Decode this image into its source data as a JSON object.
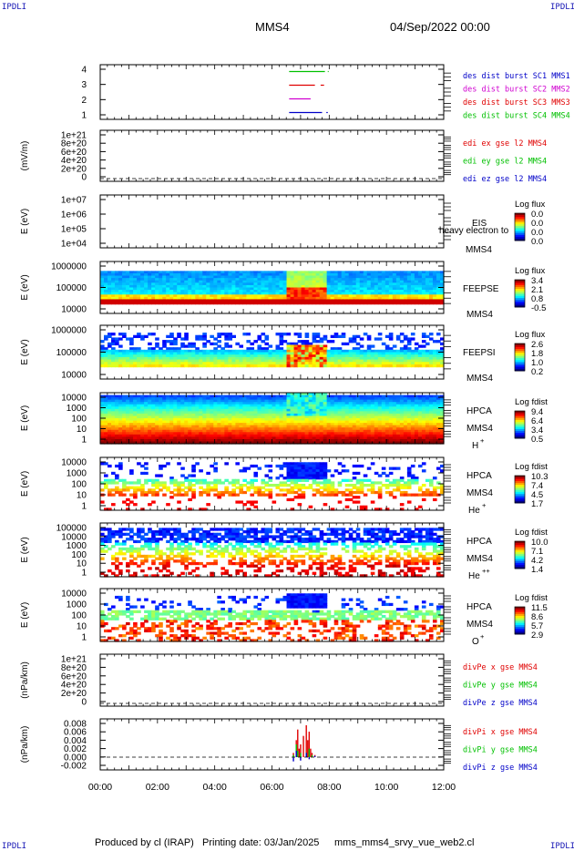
{
  "header": {
    "corner_left": "IPDLI",
    "corner_right": "IPDLI",
    "spacecraft": "MMS4",
    "date": "04/Sep/2022 00:00"
  },
  "footer": {
    "produced": "Produced by cl (IRAP)",
    "printing": "Printing date: 03/Jan/2025",
    "file": "mms_mms4_srvy_vue_web2.cl",
    "corner_left": "IPDLI",
    "corner_right": "IPDLI"
  },
  "time_axis": {
    "ticks": [
      "00:00",
      "02:00",
      "04:00",
      "06:00",
      "08:00",
      "10:00",
      "12:00"
    ],
    "range_hours": [
      0,
      12
    ]
  },
  "colors": {
    "red": "#e00000",
    "green": "#00c000",
    "blue": "#0000c8",
    "magenta": "#d000d0"
  },
  "chart_data": [
    {
      "type": "line",
      "panel": "burst-availability",
      "ylabel": "",
      "yticks": [
        "4",
        "3",
        "2",
        "1"
      ],
      "ylim": [
        0.5,
        4.5
      ],
      "legend": [
        {
          "label": "des dist burst SC1 MMS1",
          "color": "#0000c8"
        },
        {
          "label": "des dist burst SC2 MMS2",
          "color": "#d000d0"
        },
        {
          "label": "des dist burst SC3 MMS3",
          "color": "#e00000"
        },
        {
          "label": "des dist burst SC4 MMS4",
          "color": "#00c000"
        }
      ],
      "series": [
        {
          "level": 4,
          "color": "#00c000",
          "intervals": [
            [
              6.6,
              7.85
            ],
            [
              7.95,
              7.98
            ]
          ]
        },
        {
          "level": 3,
          "color": "#e00000",
          "intervals": [
            [
              6.6,
              7.5
            ],
            [
              7.7,
              7.82
            ]
          ]
        },
        {
          "level": 2,
          "color": "#d000d0",
          "intervals": [
            [
              6.6,
              7.35
            ]
          ]
        },
        {
          "level": 1,
          "color": "#0000c8",
          "intervals": [
            [
              6.6,
              7.75
            ],
            [
              7.9,
              7.95
            ]
          ]
        }
      ]
    },
    {
      "type": "line",
      "panel": "edi-e-field",
      "ylabel": "(mV/m)",
      "yticks": [
        "1e+21",
        "8e+20",
        "6e+20",
        "4e+20",
        "2e+20",
        "0"
      ],
      "ylim": [
        0,
        1e+21
      ],
      "legend": [
        {
          "label": "edi ex gse l2 MMS4",
          "color": "#e00000"
        },
        {
          "label": "edi ey gse l2 MMS4",
          "color": "#00c000"
        },
        {
          "label": "edi ez gse l2 MMS4",
          "color": "#0000c8"
        }
      ],
      "zero_line": true
    },
    {
      "type": "heatmap",
      "panel": "eis",
      "ylabel": "E (eV)",
      "yticks": [
        "1e+07",
        "1e+06",
        "1e+05",
        "1e+04"
      ],
      "labels": [
        "EIS",
        "MMS4"
      ],
      "overlay_text": "heavy electron to",
      "colorbar": {
        "title": "Log flux",
        "ticks": [
          "0.0",
          "0.0",
          "0.0",
          "0.0"
        ]
      }
    },
    {
      "type": "heatmap",
      "panel": "feeps-electrons",
      "ylabel": "E (eV)",
      "yticks": [
        "1000000",
        "100000",
        "10000"
      ],
      "labels": [
        "FEEPSE",
        "MMS4"
      ],
      "colorbar": {
        "title": "Log flux",
        "ticks": [
          "3.4",
          "2.1",
          "0.8",
          "-0.5"
        ]
      }
    },
    {
      "type": "heatmap",
      "panel": "feeps-ions",
      "ylabel": "E (eV)",
      "yticks": [
        "1000000",
        "100000",
        "10000"
      ],
      "labels": [
        "FEEPSI",
        "MMS4"
      ],
      "colorbar": {
        "title": "Log flux",
        "ticks": [
          "2.6",
          "1.8",
          "1.0",
          "0.2"
        ]
      }
    },
    {
      "type": "heatmap",
      "panel": "hpca-h",
      "ylabel": "E (eV)",
      "yticks": [
        "10000",
        "1000",
        "100",
        "10",
        "1"
      ],
      "labels": [
        "HPCA",
        "MMS4",
        "H",
        "+"
      ],
      "colorbar": {
        "title": "Log fdist",
        "ticks": [
          "9.4",
          "6.4",
          "3.4",
          "0.5"
        ]
      }
    },
    {
      "type": "heatmap",
      "panel": "hpca-he",
      "ylabel": "E (eV)",
      "yticks": [
        "10000",
        "1000",
        "100",
        "10",
        "1"
      ],
      "labels": [
        "HPCA",
        "MMS4",
        "He",
        "+"
      ],
      "colorbar": {
        "title": "Log fdist",
        "ticks": [
          "10.3",
          "7.4",
          "4.5",
          "1.7"
        ]
      }
    },
    {
      "type": "heatmap",
      "panel": "hpca-he2",
      "ylabel": "E (eV)",
      "yticks": [
        "100000",
        "10000",
        "1000",
        "100",
        "10",
        "1"
      ],
      "labels": [
        "HPCA",
        "MMS4",
        "He",
        "++"
      ],
      "colorbar": {
        "title": "Log fdist",
        "ticks": [
          "10.0",
          "7.1",
          "4.2",
          "1.4"
        ]
      }
    },
    {
      "type": "heatmap",
      "panel": "hpca-o",
      "ylabel": "E (eV)",
      "yticks": [
        "10000",
        "1000",
        "100",
        "10",
        "1"
      ],
      "labels": [
        "HPCA",
        "MMS4",
        "O",
        "+"
      ],
      "colorbar": {
        "title": "Log fdist",
        "ticks": [
          "11.5",
          "8.6",
          "5.7",
          "2.9"
        ]
      }
    },
    {
      "type": "line",
      "panel": "div-pe",
      "ylabel": "(nPa/km)",
      "yticks": [
        "1e+21",
        "8e+20",
        "6e+20",
        "4e+20",
        "2e+20",
        "0"
      ],
      "ylim": [
        0,
        1e+21
      ],
      "legend": [
        {
          "label": "divPe x gse MMS4",
          "color": "#e00000"
        },
        {
          "label": "divPe y gse MMS4",
          "color": "#00c000"
        },
        {
          "label": "divPe z gse MMS4",
          "color": "#0000c8"
        }
      ],
      "zero_line": true
    },
    {
      "type": "line",
      "panel": "div-pi",
      "ylabel": "(nPa/km)",
      "yticks": [
        "0.008",
        "0.006",
        "0.004",
        "0.002",
        "0.000",
        "-0.002"
      ],
      "ylim": [
        -0.003,
        0.009
      ],
      "legend": [
        {
          "label": "divPi x gse MMS4",
          "color": "#e00000"
        },
        {
          "label": "divPi y gse MMS4",
          "color": "#00c000"
        },
        {
          "label": "divPi z gse MMS4",
          "color": "#0000c8"
        }
      ],
      "zero_line": true,
      "series": [
        {
          "name": "divPi x gse MMS4",
          "color": "#e00000",
          "x": [
            6.75,
            6.85,
            6.9,
            6.95,
            7.0,
            7.1,
            7.2,
            7.25,
            7.3,
            7.35,
            7.4,
            7.5
          ],
          "y": [
            0.001,
            0.004,
            0.0065,
            0.002,
            0.003,
            0.005,
            0.0075,
            0.004,
            0.006,
            0.002,
            0.001,
            0.0005
          ]
        },
        {
          "name": "divPi y gse MMS4",
          "color": "#00c000",
          "x": [
            6.75,
            6.85,
            6.9,
            7.0,
            7.2,
            7.3,
            7.4
          ],
          "y": [
            0.0005,
            0.003,
            0.0015,
            0.001,
            0.001,
            0.002,
            0.0005
          ]
        },
        {
          "name": "divPi z gse MMS4",
          "color": "#0000c8",
          "x": [
            6.75,
            6.85,
            7.0,
            7.2,
            7.3,
            7.5
          ],
          "y": [
            -0.001,
            0.0015,
            -0.0008,
            0.001,
            -0.0005,
            0.0003
          ]
        }
      ]
    }
  ]
}
